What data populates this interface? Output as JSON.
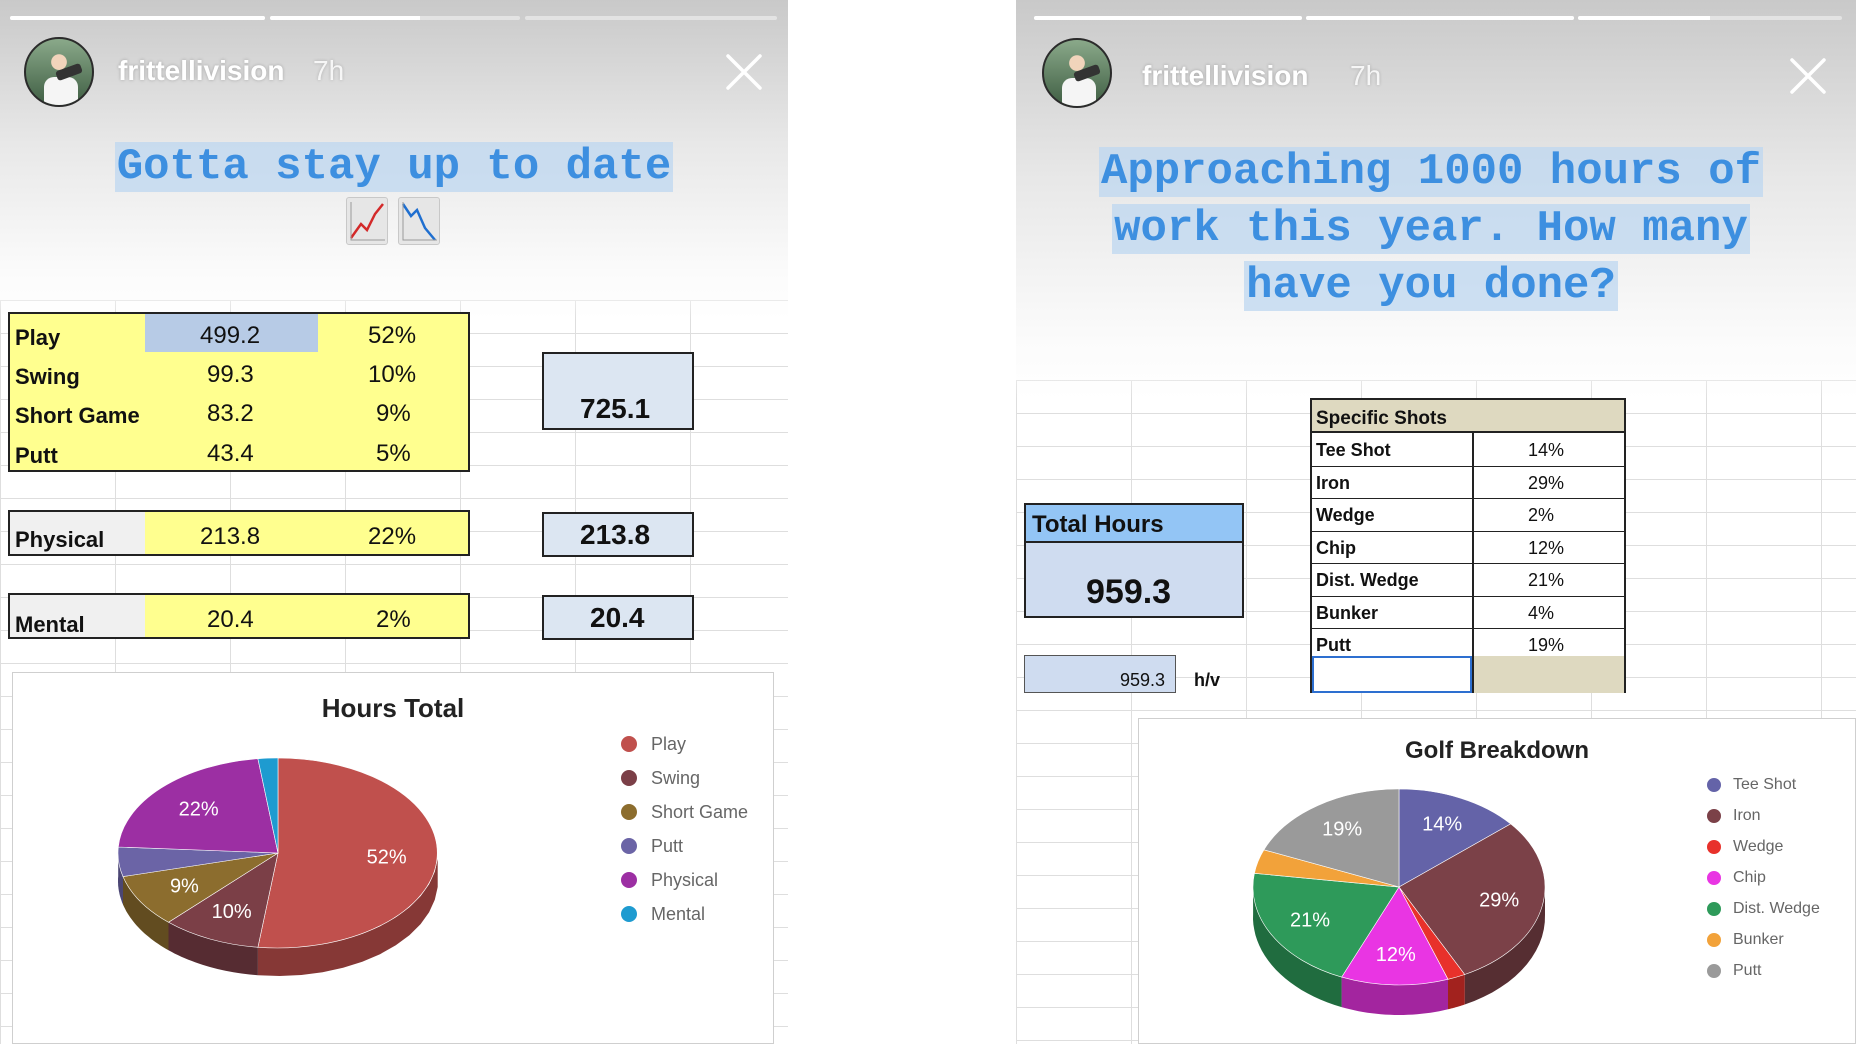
{
  "story_left": {
    "progress": [
      {
        "fill": 1.0
      },
      {
        "fill": 0.6
      },
      {
        "fill": 0.0
      }
    ],
    "username": "frittellivision",
    "time_ago": "7h",
    "caption": "Gotta stay up to date",
    "emoji": [
      "chart-increasing-icon",
      "chart-decreasing-icon"
    ],
    "sheet": {
      "main_rows": [
        {
          "label": "Play",
          "hours": "499.2",
          "pct": "52%"
        },
        {
          "label": "Swing",
          "hours": "99.3",
          "pct": "10%"
        },
        {
          "label": "Short Game",
          "hours": "83.2",
          "pct": "9%"
        },
        {
          "label": "Putt",
          "hours": "43.4",
          "pct": "5%"
        }
      ],
      "main_total": "725.1",
      "physical": {
        "label": "Physical",
        "hours": "213.8",
        "pct": "22%",
        "total": "213.8"
      },
      "mental": {
        "label": "Mental",
        "hours": "20.4",
        "pct": "2%",
        "total": "20.4"
      }
    },
    "chart_data": {
      "type": "pie",
      "title": "Hours Total",
      "categories": [
        "Play",
        "Swing",
        "Short Game",
        "Putt",
        "Physical",
        "Mental"
      ],
      "values": [
        52,
        10,
        9,
        5,
        22,
        2
      ],
      "labels_shown": [
        "52%",
        "10%",
        "9%",
        "",
        "22%",
        ""
      ],
      "colors": [
        "#c0504d",
        "#7b3f47",
        "#8c6d2e",
        "#6b64a6",
        "#9c2fa3",
        "#1e9bd0"
      ],
      "legend": "right"
    }
  },
  "story_right": {
    "progress": [
      {
        "fill": 1.0
      },
      {
        "fill": 1.0
      },
      {
        "fill": 0.5
      }
    ],
    "username": "frittellivision",
    "time_ago": "7h",
    "caption": "Approaching 1000 hours of work this year. How many have you done?",
    "total_hours_label": "Total Hours",
    "total_hours_value": "959.3",
    "small_value": "959.3",
    "small_unit": "h/v",
    "specific_shots": {
      "header": "Specific Shots",
      "rows": [
        {
          "label": "Tee Shot",
          "pct": "14%"
        },
        {
          "label": "Iron",
          "pct": "29%"
        },
        {
          "label": "Wedge",
          "pct": "2%"
        },
        {
          "label": "Chip",
          "pct": "12%"
        },
        {
          "label": "Dist. Wedge",
          "pct": "21%"
        },
        {
          "label": "Bunker",
          "pct": "4%"
        },
        {
          "label": "Putt",
          "pct": "19%"
        }
      ]
    },
    "chart_data": {
      "type": "pie",
      "title": "Golf Breakdown",
      "categories": [
        "Tee Shot",
        "Iron",
        "Wedge",
        "Chip",
        "Dist. Wedge",
        "Bunker",
        "Putt"
      ],
      "values": [
        14,
        29,
        2,
        12,
        21,
        4,
        19
      ],
      "labels_shown": [
        "14%",
        "29%",
        "",
        "12%",
        "21%",
        "",
        "19%"
      ],
      "colors": [
        "#6463a8",
        "#7b4148",
        "#e8312b",
        "#e935e3",
        "#2e9a5a",
        "#f2a23a",
        "#9a9a9a"
      ],
      "legend": "right"
    }
  }
}
